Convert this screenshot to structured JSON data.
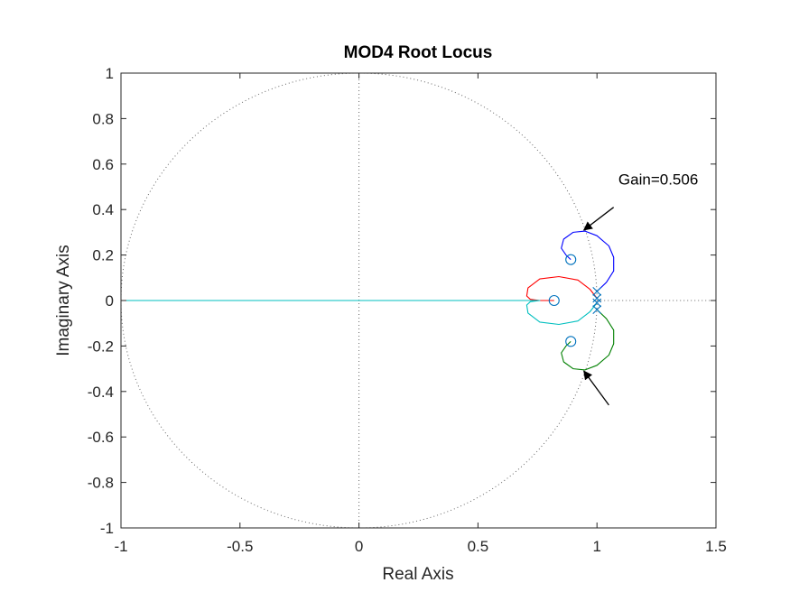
{
  "chart_data": {
    "type": "line",
    "title": "MOD4 Root Locus",
    "xlabel": "Real Axis",
    "ylabel": "Imaginary Axis",
    "xlim": [
      -1,
      1.5
    ],
    "ylim": [
      -1,
      1
    ],
    "grid": false,
    "box": true,
    "xticks": [
      -1,
      -0.5,
      0,
      0.5,
      1,
      1.5
    ],
    "xtick_labels": [
      "-1",
      "-0.5",
      "0",
      "0.5",
      "1",
      "1.5"
    ],
    "yticks": [
      -1,
      -0.8,
      -0.6,
      -0.4,
      -0.2,
      0,
      0.2,
      0.4,
      0.6,
      0.8,
      1
    ],
    "ytick_labels": [
      "-1",
      "-0.8",
      "-0.6",
      "-0.4",
      "-0.2",
      "0",
      "0.2",
      "0.4",
      "0.6",
      "0.8",
      "1"
    ],
    "unit_circle": {
      "center": [
        0,
        0
      ],
      "radius": 1,
      "style": "dotted",
      "color": "#666666"
    },
    "reference_lines": [
      {
        "orientation": "horizontal",
        "value": 0,
        "from": 1,
        "to": 1.5,
        "style": "dotted"
      },
      {
        "orientation": "vertical",
        "value": 0,
        "from": -1,
        "to": 1,
        "style": "dotted"
      }
    ],
    "poles": [
      {
        "x": 1.0,
        "y": 0.04
      },
      {
        "x": 1.0,
        "y": 0.01
      },
      {
        "x": 1.0,
        "y": -0.01
      },
      {
        "x": 1.0,
        "y": -0.04
      }
    ],
    "zeros": [
      {
        "x": 0.89,
        "y": 0.18
      },
      {
        "x": 0.82,
        "y": 0.0
      },
      {
        "x": 0.89,
        "y": -0.18
      }
    ],
    "marker_color": "#0072BD",
    "series": [
      {
        "color": "#0000FF",
        "points": [
          [
            1.0,
            0.04
          ],
          [
            1.04,
            0.08
          ],
          [
            1.07,
            0.13
          ],
          [
            1.07,
            0.19
          ],
          [
            1.05,
            0.24
          ],
          [
            1.0,
            0.285
          ],
          [
            0.95,
            0.305
          ],
          [
            0.9,
            0.3
          ],
          [
            0.86,
            0.27
          ],
          [
            0.85,
            0.23
          ],
          [
            0.87,
            0.2
          ],
          [
            0.89,
            0.18
          ]
        ]
      },
      {
        "color": "#008000",
        "points": [
          [
            1.0,
            -0.04
          ],
          [
            1.04,
            -0.08
          ],
          [
            1.07,
            -0.13
          ],
          [
            1.07,
            -0.19
          ],
          [
            1.05,
            -0.24
          ],
          [
            1.0,
            -0.285
          ],
          [
            0.95,
            -0.305
          ],
          [
            0.9,
            -0.3
          ],
          [
            0.86,
            -0.27
          ],
          [
            0.85,
            -0.23
          ],
          [
            0.87,
            -0.2
          ],
          [
            0.89,
            -0.18
          ]
        ]
      },
      {
        "color": "#FF0000",
        "points": [
          [
            1.0,
            0.01
          ],
          [
            0.97,
            0.05
          ],
          [
            0.92,
            0.09
          ],
          [
            0.84,
            0.105
          ],
          [
            0.76,
            0.095
          ],
          [
            0.71,
            0.055
          ],
          [
            0.705,
            0.02
          ],
          [
            0.72,
            0.005
          ],
          [
            0.76,
            0.0
          ],
          [
            0.82,
            0.0
          ]
        ]
      },
      {
        "color": "#00BFBF",
        "points": [
          [
            1.0,
            -0.01
          ],
          [
            0.97,
            -0.05
          ],
          [
            0.92,
            -0.09
          ],
          [
            0.84,
            -0.105
          ],
          [
            0.76,
            -0.095
          ],
          [
            0.71,
            -0.055
          ],
          [
            0.705,
            -0.02
          ],
          [
            0.72,
            -0.005
          ],
          [
            0.76,
            0.0
          ],
          [
            0.7,
            0.0
          ],
          [
            0.3,
            0.0
          ],
          [
            -0.3,
            0.0
          ],
          [
            -1.0,
            0.0
          ]
        ]
      }
    ],
    "annotations": [
      {
        "text": "Gain=0.506",
        "text_x": 1.09,
        "text_y": 0.51,
        "arrow_from": [
          1.07,
          0.41
        ],
        "arrow_to": [
          0.945,
          0.31
        ]
      },
      {
        "text": "",
        "arrow_from": [
          1.05,
          -0.46
        ],
        "arrow_to": [
          0.945,
          -0.31
        ]
      }
    ]
  }
}
